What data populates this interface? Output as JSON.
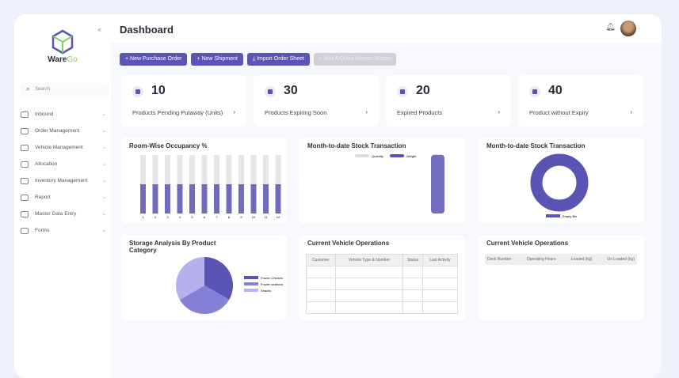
{
  "app": {
    "brand_main": "Ware",
    "brand_accent": "Go",
    "page_title": "Dashboard"
  },
  "sidebar": {
    "search_placeholder": "Search",
    "items": [
      {
        "label": "Inbound"
      },
      {
        "label": "Order Management"
      },
      {
        "label": "Vehicle Management"
      },
      {
        "label": "Allocation"
      },
      {
        "label": "Inventory Management"
      },
      {
        "label": "Report"
      },
      {
        "label": "Master Data Entry"
      },
      {
        "label": "Forms"
      }
    ]
  },
  "quick_actions": [
    {
      "label": "+ New Purchase Order",
      "enabled": true
    },
    {
      "label": "+ New Shipment",
      "enabled": true
    },
    {
      "label": "⤓ Import Order Sheet",
      "enabled": true
    },
    {
      "label": "+ Add A Quick Access Button",
      "enabled": false
    }
  ],
  "kpis": [
    {
      "value": "10",
      "label": "Products Pending Putaway (Units)"
    },
    {
      "value": "30",
      "label": "Products Expiring Soon"
    },
    {
      "value": "20",
      "label": "Expired Products"
    },
    {
      "value": "40",
      "label": "Product without Expiry"
    }
  ],
  "colors": {
    "accent": "#5a55b5",
    "light_accent": "#b6b2ee",
    "bar_bg": "#e6e6e8"
  },
  "chart_data": [
    {
      "type": "bar",
      "title": "Room-Wise Occupancy %",
      "categories": [
        "1",
        "2",
        "3",
        "4",
        "5",
        "6",
        "7",
        "8",
        "9",
        "10",
        "11",
        "12"
      ],
      "values": [
        50,
        50,
        50,
        50,
        50,
        50,
        50,
        50,
        50,
        50,
        50,
        50
      ],
      "ylim": [
        0,
        100
      ],
      "grid": false
    },
    {
      "type": "bar",
      "title": "Month-to-date Stock Transaction",
      "series": [
        {
          "name": "Quantity",
          "values": [
            0,
            0,
            0
          ]
        },
        {
          "name": "Weight",
          "values": [
            0,
            0,
            1300000
          ]
        }
      ],
      "ylim": [
        0,
        1400000
      ],
      "legend": "top"
    },
    {
      "type": "pie",
      "title": "Month-to-date Stock Transaction",
      "donut": true,
      "categories": [
        "Empty Bin"
      ],
      "values": [
        100
      ],
      "legend": "bottom"
    },
    {
      "type": "pie",
      "title": "Storage Analysis By Product Category",
      "categories": [
        "Frozen Chicken",
        "Frozen seafood",
        "Snacks"
      ],
      "values": [
        33.3,
        33.3,
        33.4
      ],
      "legend": "right"
    }
  ],
  "vehicle_ops_1": {
    "title": "Current Vehicle Operations",
    "columns": [
      "Customer",
      "Vehicle Type & Number",
      "Status",
      "Last Activity"
    ]
  },
  "vehicle_ops_2": {
    "title": "Current Vehicle Operations",
    "columns": [
      "Dock Number",
      "Operating Hours",
      "Loaded (kg)",
      "Un Loaded (kg)"
    ]
  }
}
